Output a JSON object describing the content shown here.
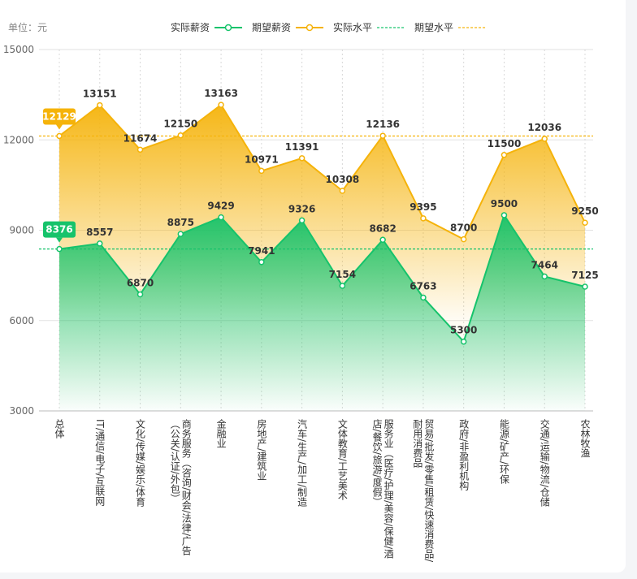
{
  "chart_data": {
    "type": "line",
    "unit_label": "单位：元",
    "categories": [
      "总体",
      "IT/通信/电子/互联网",
      "文化/传媒/娱乐/体育",
      "商务服务（咨询/财会/法律/广告（公关/认证/外包）",
      "金融业",
      "房地产/建筑业",
      "汽车/生产/加工/制造",
      "文体教育/工艺美术",
      "服务业（医疗/护理/美容/保健/酒店/餐饮/旅游/度假）",
      "贸易/批发/零售/租赁/快速消费品/耐用消费品",
      "政府/非盈利机构",
      "能源/矿产/环保",
      "交通/运输/物流/仓储",
      "农林牧渔"
    ],
    "series": [
      {
        "name": "实际薪资",
        "color": "#16c36b",
        "values": [
          8376,
          8557,
          6870,
          8875,
          9429,
          7941,
          9326,
          7154,
          8682,
          6763,
          5300,
          9500,
          7464,
          7125
        ]
      },
      {
        "name": "期望薪资",
        "color": "#f5b30a",
        "values": [
          12129,
          13151,
          11674,
          12150,
          13163,
          10971,
          11391,
          10308,
          12136,
          9395,
          8700,
          11500,
          12036,
          9250
        ]
      }
    ],
    "reference_lines": [
      {
        "name": "实际水平",
        "color": "#16c36b",
        "value": 8376
      },
      {
        "name": "期望水平",
        "color": "#f5b30a",
        "value": 12129
      }
    ],
    "ylim": [
      3000,
      15000
    ],
    "yticks": [
      3000,
      6000,
      9000,
      12000,
      15000
    ],
    "grid": true
  }
}
